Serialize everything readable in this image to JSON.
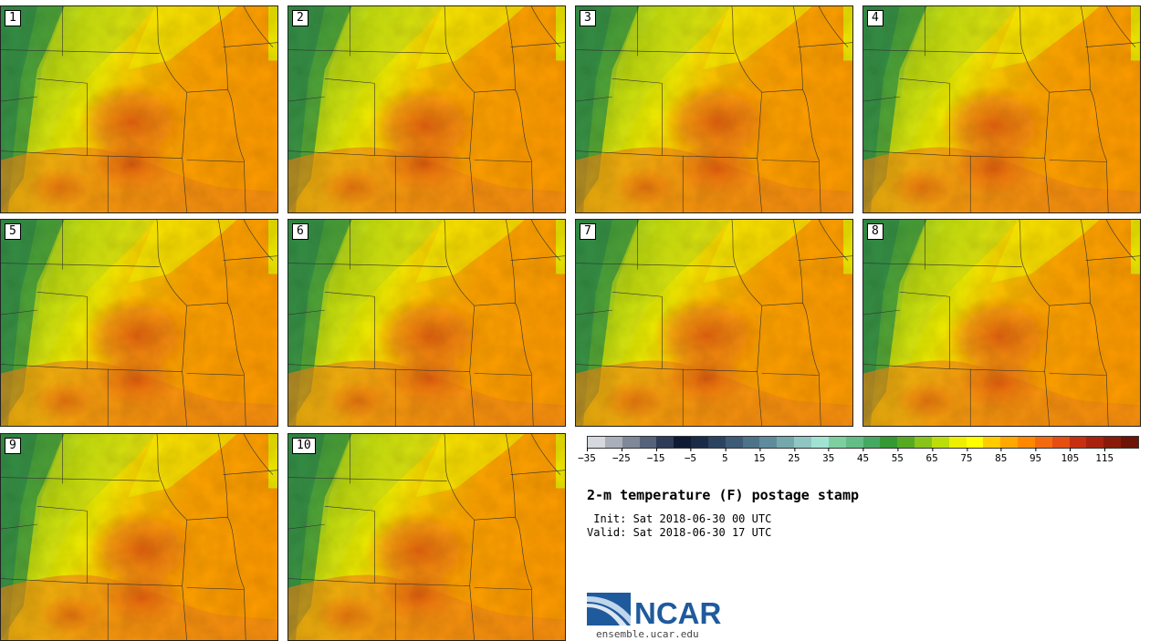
{
  "product": {
    "title": "2-m temperature (F) postage stamp",
    "init_line": " Init: Sat 2018-06-30 00 UTC",
    "valid_line": "Valid: Sat 2018-06-30 17 UTC"
  },
  "members": [
    "1",
    "2",
    "3",
    "4",
    "5",
    "6",
    "7",
    "8",
    "9",
    "10"
  ],
  "colorbar": {
    "ticks": [
      "−35",
      "−25",
      "−15",
      "−5",
      "5",
      "15",
      "25",
      "35",
      "45",
      "55",
      "65",
      "75",
      "85",
      "95",
      "105",
      "115"
    ],
    "colors": [
      "#d5d9de",
      "#a9b0ba",
      "#7f8898",
      "#56627a",
      "#2e3c58",
      "#0f1a34",
      "#1a2b48",
      "#2b4360",
      "#3d5b76",
      "#4d7389",
      "#5f8c9c",
      "#75a8ad",
      "#8fc6c2",
      "#a1e3d3",
      "#7dcfa0",
      "#62bd86",
      "#45a863",
      "#339933",
      "#55aa22",
      "#88c41a",
      "#bbdd0a",
      "#eeee00",
      "#ffff00",
      "#ffcc00",
      "#ffa800",
      "#ff8800",
      "#f36b10",
      "#e54e10",
      "#c63010",
      "#a8220e",
      "#8a1a0a",
      "#6e1308"
    ]
  },
  "logo": {
    "wordmark": "NCAR",
    "url": "ensemble.ucar.edu"
  }
}
